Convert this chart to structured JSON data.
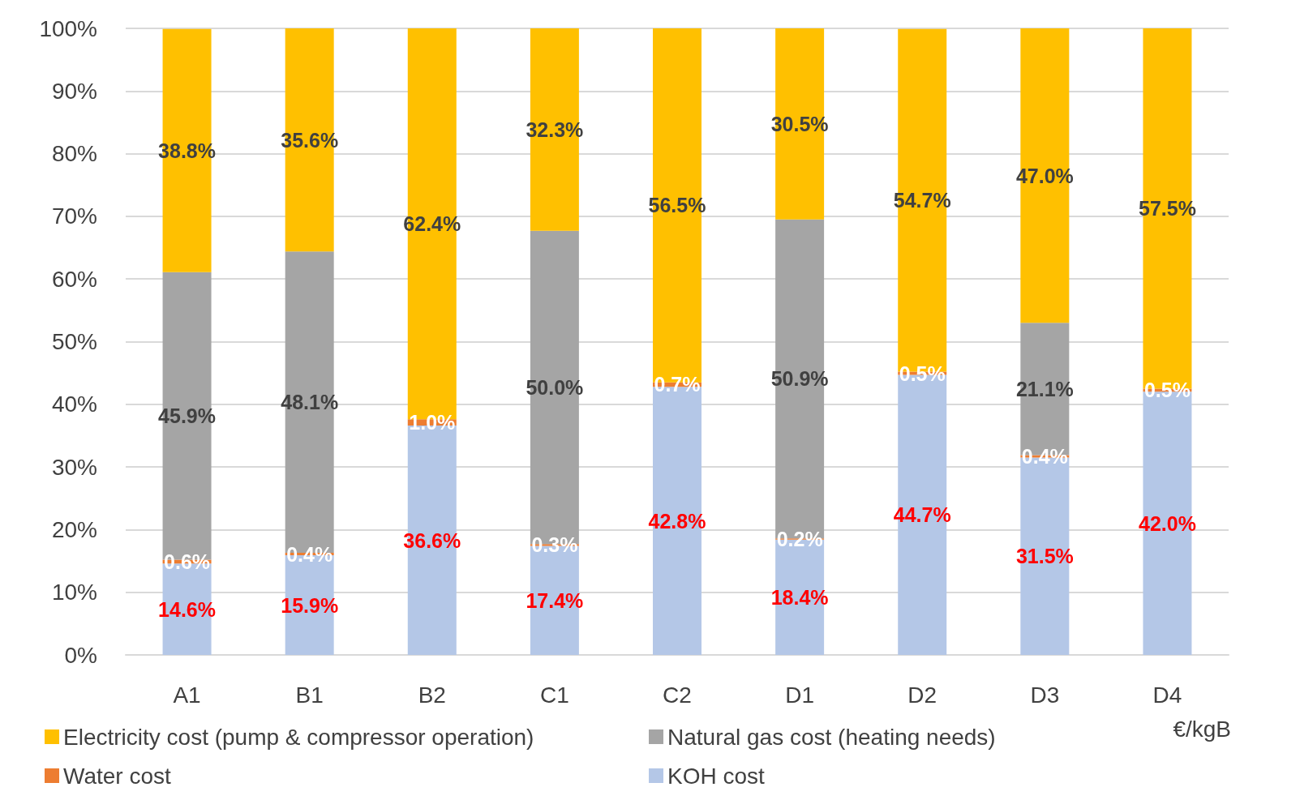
{
  "chart_data": {
    "type": "bar",
    "stacked": true,
    "xlabel": "€/kgB",
    "categories": [
      "A1",
      "B1",
      "B2",
      "C1",
      "C2",
      "D1",
      "D2",
      "D3",
      "D4"
    ],
    "series": [
      {
        "name": "KOH cost",
        "color": "#b4c7e7",
        "values": [
          14.6,
          15.9,
          36.6,
          17.4,
          42.8,
          18.4,
          44.7,
          31.5,
          42.0
        ],
        "value_labels": [
          "14.6%",
          "15.9%",
          "36.6%",
          "17.4%",
          "42.8%",
          "18.4%",
          "44.7%",
          "31.5%",
          "42.0%"
        ]
      },
      {
        "name": "Water cost",
        "color": "#ed7d31",
        "values": [
          0.6,
          0.4,
          1.0,
          0.3,
          0.7,
          0.2,
          0.5,
          0.4,
          0.5
        ],
        "value_labels": [
          "0.6%",
          "0.4%",
          "1.0%",
          "0.3%",
          "0.7%",
          "0.2%",
          "0.5%",
          "0.4%",
          "0.5%"
        ]
      },
      {
        "name": "Natural gas cost (heating needs)",
        "color": "#a5a5a5",
        "values": [
          45.9,
          48.1,
          0,
          50.0,
          0,
          50.9,
          0,
          21.1,
          0
        ],
        "value_labels": [
          "45.9%",
          "48.1%",
          null,
          "50.0%",
          null,
          "50.9%",
          null,
          "21.1%",
          null
        ]
      },
      {
        "name": "Electricity cost (pump & compressor operation)",
        "color": "#ffc000",
        "values": [
          38.8,
          35.6,
          62.4,
          32.3,
          56.5,
          30.5,
          54.7,
          47.0,
          57.5
        ],
        "value_labels": [
          "38.8%",
          "35.6%",
          "62.4%",
          "32.3%",
          "56.5%",
          "30.5%",
          "54.7%",
          "47.0%",
          "57.5%"
        ]
      }
    ],
    "ylim": [
      0,
      100
    ],
    "yticks": [
      {
        "value": 0,
        "label": "0%"
      },
      {
        "value": 10,
        "label": "10%"
      },
      {
        "value": 20,
        "label": "20%"
      },
      {
        "value": 30,
        "label": "30%"
      },
      {
        "value": 40,
        "label": "40%"
      },
      {
        "value": 50,
        "label": "50%"
      },
      {
        "value": 60,
        "label": "60%"
      },
      {
        "value": 70,
        "label": "70%"
      },
      {
        "value": 80,
        "label": "80%"
      },
      {
        "value": 90,
        "label": "90%"
      },
      {
        "value": 100,
        "label": "100%"
      }
    ],
    "grid": "y",
    "legend": "bottom"
  }
}
